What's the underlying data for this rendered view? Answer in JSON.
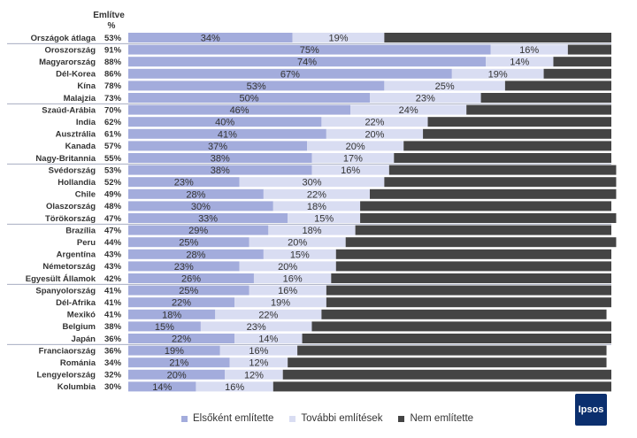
{
  "chart_data": {
    "type": "bar",
    "stacked": true,
    "orientation": "horizontal",
    "header": {
      "line1": "Említve",
      "line2": "%"
    },
    "categories": [
      "Országok átlaga",
      "Oroszország",
      "Magyarország",
      "Dél-Korea",
      "Kína",
      "Malajzia",
      "Szaúd-Arábia",
      "India",
      "Ausztrália",
      "Kanada",
      "Nagy-Britannia",
      "Svédország",
      "Hollandia",
      "Chile",
      "Olaszország",
      "Törökország",
      "Brazília",
      "Peru",
      "Argentína",
      "Németország",
      "Egyesült Államok",
      "Spanyolország",
      "Dél-Afrika",
      "Mexikó",
      "Belgium",
      "Japán",
      "Franciaország",
      "Románia",
      "Lengyelország",
      "Kolumbia"
    ],
    "mentioned_total": [
      "53%",
      "91%",
      "88%",
      "86%",
      "78%",
      "73%",
      "70%",
      "62%",
      "61%",
      "57%",
      "55%",
      "53%",
      "52%",
      "49%",
      "48%",
      "47%",
      "47%",
      "44%",
      "43%",
      "43%",
      "42%",
      "41%",
      "41%",
      "41%",
      "38%",
      "36%",
      "36%",
      "34%",
      "32%",
      "30%"
    ],
    "series": [
      {
        "name": "Elsőként említette",
        "color": "#a3acdc",
        "values": [
          34,
          75,
          74,
          67,
          53,
          50,
          46,
          40,
          41,
          37,
          38,
          38,
          23,
          28,
          30,
          33,
          29,
          25,
          28,
          23,
          26,
          25,
          22,
          18,
          15,
          22,
          19,
          21,
          20,
          14
        ]
      },
      {
        "name": "További említések",
        "color": "#d9ddf2",
        "values": [
          19,
          16,
          14,
          19,
          25,
          23,
          24,
          22,
          20,
          20,
          17,
          16,
          30,
          22,
          18,
          15,
          18,
          20,
          15,
          20,
          16,
          16,
          19,
          22,
          23,
          14,
          16,
          12,
          12,
          16
        ]
      },
      {
        "name": "Nem említette",
        "color": "#444444",
        "values": [
          47,
          9,
          12,
          14,
          22,
          27,
          30,
          38,
          39,
          43,
          45,
          47,
          48,
          51,
          52,
          53,
          53,
          56,
          57,
          57,
          58,
          59,
          59,
          59,
          62,
          64,
          64,
          66,
          68,
          70
        ]
      }
    ],
    "show_value_labels_for_series": [
      0,
      1
    ],
    "group_breaks_after_index": [
      0,
      5,
      10,
      15,
      20,
      25
    ],
    "xlim": [
      0,
      100
    ],
    "legend_position": "bottom",
    "grid": false
  },
  "logo": {
    "text": "Ipsos"
  }
}
